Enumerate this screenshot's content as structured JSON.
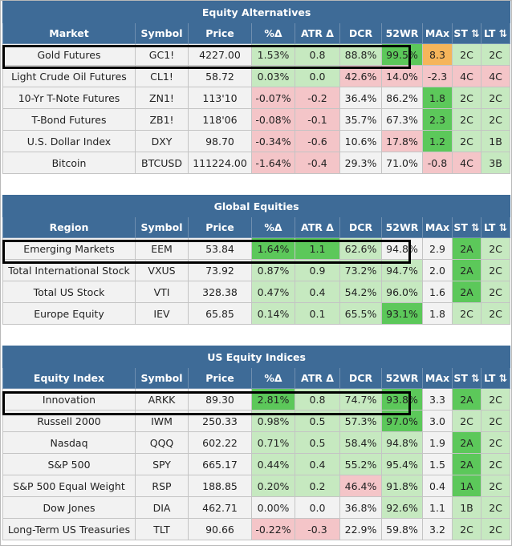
{
  "sections": [
    {
      "title": "Equity Alternatives",
      "headers": [
        "Market",
        "Symbol",
        "Price",
        "%Δ",
        "ATR Δ",
        "DCR",
        "52WR",
        "MAx",
        "ST ⇅",
        "LT ⇅"
      ],
      "rows": [
        {
          "name": "Gold Futures",
          "symbol": "GC1!",
          "price": "4227.00",
          "pct": "1.53%",
          "atr": "0.8",
          "dcr": "88.8%",
          "wr": "99.5%",
          "max": "8.3",
          "st": "2C",
          "lt": "2C",
          "highlighted": true
        },
        {
          "name": "Light Crude Oil Futures",
          "symbol": "CL1!",
          "price": "58.72",
          "pct": "0.03%",
          "atr": "0.0",
          "dcr": "42.6%",
          "wr": "14.0%",
          "max": "-2.3",
          "st": "4C",
          "lt": "4C"
        },
        {
          "name": "10-Yr T-Note Futures",
          "symbol": "ZN1!",
          "price": "113'10",
          "pct": "-0.07%",
          "atr": "-0.2",
          "dcr": "36.4%",
          "wr": "86.2%",
          "max": "1.8",
          "st": "2C",
          "lt": "2C"
        },
        {
          "name": "T-Bond Futures",
          "symbol": "ZB1!",
          "price": "118'06",
          "pct": "-0.08%",
          "atr": "-0.1",
          "dcr": "35.7%",
          "wr": "67.3%",
          "max": "2.3",
          "st": "2C",
          "lt": "2C"
        },
        {
          "name": "U.S. Dollar Index",
          "symbol": "DXY",
          "price": "98.70",
          "pct": "-0.34%",
          "atr": "-0.6",
          "dcr": "10.6%",
          "wr": "17.8%",
          "max": "1.2",
          "st": "2C",
          "lt": "1B"
        },
        {
          "name": "Bitcoin",
          "symbol": "BTCUSD",
          "price": "111224.00",
          "pct": "-1.64%",
          "atr": "-0.4",
          "dcr": "29.3%",
          "wr": "71.0%",
          "max": "-0.8",
          "st": "4C",
          "lt": "3B"
        }
      ]
    },
    {
      "title": "Global Equities",
      "headers": [
        "Region",
        "Symbol",
        "Price",
        "%Δ",
        "ATR Δ",
        "DCR",
        "52WR",
        "MAx",
        "ST ⇅",
        "LT ⇅"
      ],
      "rows": [
        {
          "name": "Emerging Markets",
          "symbol": "EEM",
          "price": "53.84",
          "pct": "1.64%",
          "atr": "1.1",
          "dcr": "62.6%",
          "wr": "94.8%",
          "max": "2.9",
          "st": "2A",
          "lt": "2C",
          "highlighted": true
        },
        {
          "name": "Total International Stock",
          "symbol": "VXUS",
          "price": "73.92",
          "pct": "0.87%",
          "atr": "0.9",
          "dcr": "73.2%",
          "wr": "94.7%",
          "max": "2.0",
          "st": "2A",
          "lt": "2C"
        },
        {
          "name": "Total US Stock",
          "symbol": "VTI",
          "price": "328.38",
          "pct": "0.47%",
          "atr": "0.4",
          "dcr": "54.2%",
          "wr": "96.0%",
          "max": "1.6",
          "st": "2A",
          "lt": "2C"
        },
        {
          "name": "Europe Equity",
          "symbol": "IEV",
          "price": "65.85",
          "pct": "0.14%",
          "atr": "0.1",
          "dcr": "65.5%",
          "wr": "93.1%",
          "max": "1.8",
          "st": "2C",
          "lt": "2C"
        }
      ]
    },
    {
      "title": "US Equity Indices",
      "headers": [
        "Equity Index",
        "Symbol",
        "Price",
        "%Δ",
        "ATR Δ",
        "DCR",
        "52WR",
        "MAx",
        "ST ⇅",
        "LT ⇅"
      ],
      "rows": [
        {
          "name": "Innovation",
          "symbol": "ARKK",
          "price": "89.30",
          "pct": "2.81%",
          "atr": "0.8",
          "dcr": "74.7%",
          "wr": "93.8%",
          "max": "3.3",
          "st": "2A",
          "lt": "2C",
          "highlighted": true
        },
        {
          "name": "Russell 2000",
          "symbol": "IWM",
          "price": "250.33",
          "pct": "0.98%",
          "atr": "0.5",
          "dcr": "57.3%",
          "wr": "97.0%",
          "max": "3.0",
          "st": "2C",
          "lt": "2C"
        },
        {
          "name": "Nasdaq",
          "symbol": "QQQ",
          "price": "602.22",
          "pct": "0.71%",
          "atr": "0.5",
          "dcr": "58.4%",
          "wr": "94.8%",
          "max": "1.9",
          "st": "2A",
          "lt": "2C"
        },
        {
          "name": "S&P 500",
          "symbol": "SPY",
          "price": "665.17",
          "pct": "0.44%",
          "atr": "0.4",
          "dcr": "55.2%",
          "wr": "95.4%",
          "max": "1.5",
          "st": "2A",
          "lt": "2C"
        },
        {
          "name": "S&P 500 Equal Weight",
          "symbol": "RSP",
          "price": "188.85",
          "pct": "0.20%",
          "atr": "0.2",
          "dcr": "46.4%",
          "wr": "91.8%",
          "max": "0.4",
          "st": "1A",
          "lt": "2C"
        },
        {
          "name": "Dow Jones",
          "symbol": "DIA",
          "price": "462.71",
          "pct": "0.00%",
          "atr": "0.0",
          "dcr": "36.8%",
          "wr": "92.6%",
          "max": "1.1",
          "st": "1B",
          "lt": "2C"
        },
        {
          "name": "Long-Term US Treasuries",
          "symbol": "TLT",
          "price": "90.66",
          "pct": "-0.22%",
          "atr": "-0.3",
          "dcr": "22.9%",
          "wr": "59.8%",
          "max": "3.2",
          "st": "2C",
          "lt": "2C"
        }
      ]
    }
  ],
  "colors": {
    "header": "#3e6b97",
    "positive": "#c6e9c0",
    "negative": "#f4c5c8",
    "strong": "#5cc85a",
    "warning": "#f5b55a",
    "neutral": "#f2f2f2"
  }
}
